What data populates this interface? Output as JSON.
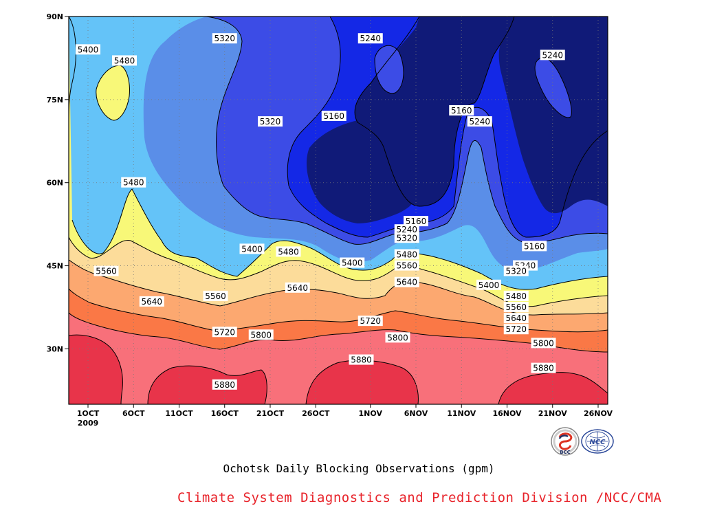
{
  "chart_data": {
    "type": "contour",
    "title": "Ochotsk Daily Blocking Observations (gpm)",
    "x_ticks": [
      "1OCT",
      "6OCT",
      "11OCT",
      "16OCT",
      "21OCT",
      "26OCT",
      "1NOV",
      "6NOV",
      "11NOV",
      "16NOV",
      "21NOV",
      "26NOV"
    ],
    "x_year_label": "2009",
    "y_ticks": [
      "90N",
      "75N",
      "60N",
      "45N",
      "30N"
    ],
    "ylim": [
      20,
      90
    ],
    "contour_levels": [
      5160,
      5240,
      5320,
      5400,
      5480,
      5560,
      5640,
      5720,
      5800,
      5880
    ],
    "fill_colors": [
      "#101a78",
      "#1428e6",
      "#3c4ce6",
      "#5a8ee8",
      "#64c3f8",
      "#f8f878",
      "#fcdc9a",
      "#fca870",
      "#fa7846",
      "#f8707a",
      "#e8344a"
    ],
    "contour_labels": [
      {
        "value": 5400,
        "date": "1OCT",
        "lat": 84
      },
      {
        "value": 5480,
        "date": "5OCT",
        "lat": 82
      },
      {
        "value": 5320,
        "date": "16OCT",
        "lat": 86
      },
      {
        "value": 5240,
        "date": "1NOV",
        "lat": 86
      },
      {
        "value": 5240,
        "date": "21NOV",
        "lat": 83
      },
      {
        "value": 5160,
        "date": "28OCT",
        "lat": 72
      },
      {
        "value": 5320,
        "date": "21OCT",
        "lat": 71
      },
      {
        "value": 5160,
        "date": "11NOV",
        "lat": 73
      },
      {
        "value": 5240,
        "date": "13NOV",
        "lat": 71
      },
      {
        "value": 5480,
        "date": "6OCT",
        "lat": 60
      },
      {
        "value": 5160,
        "date": "6NOV",
        "lat": 53
      },
      {
        "value": 5240,
        "date": "5NOV",
        "lat": 51.5
      },
      {
        "value": 5320,
        "date": "5NOV",
        "lat": 50
      },
      {
        "value": 5160,
        "date": "19NOV",
        "lat": 48.5
      },
      {
        "value": 5400,
        "date": "19OCT",
        "lat": 48
      },
      {
        "value": 5480,
        "date": "23OCT",
        "lat": 47.5
      },
      {
        "value": 5480,
        "date": "5NOV",
        "lat": 47
      },
      {
        "value": 5400,
        "date": "30OCT",
        "lat": 45.5
      },
      {
        "value": 5240,
        "date": "18NOV",
        "lat": 45
      },
      {
        "value": 5560,
        "date": "5NOV",
        "lat": 45
      },
      {
        "value": 5320,
        "date": "17NOV",
        "lat": 44
      },
      {
        "value": 5560,
        "date": "3OCT",
        "lat": 44
      },
      {
        "value": 5640,
        "date": "5NOV",
        "lat": 42
      },
      {
        "value": 5400,
        "date": "14NOV",
        "lat": 41.5
      },
      {
        "value": 5640,
        "date": "24OCT",
        "lat": 41
      },
      {
        "value": 5480,
        "date": "17NOV",
        "lat": 39.5
      },
      {
        "value": 5560,
        "date": "15OCT",
        "lat": 39.5
      },
      {
        "value": 5640,
        "date": "8OCT",
        "lat": 38.5
      },
      {
        "value": 5560,
        "date": "17NOV",
        "lat": 37.5
      },
      {
        "value": 5640,
        "date": "17NOV",
        "lat": 35.5
      },
      {
        "value": 5720,
        "date": "1NOV",
        "lat": 35
      },
      {
        "value": 5720,
        "date": "17NOV",
        "lat": 33.5
      },
      {
        "value": 5720,
        "date": "16OCT",
        "lat": 33
      },
      {
        "value": 5800,
        "date": "20OCT",
        "lat": 32.5
      },
      {
        "value": 5800,
        "date": "4NOV",
        "lat": 32
      },
      {
        "value": 5800,
        "date": "20NOV",
        "lat": 31
      },
      {
        "value": 5880,
        "date": "31OCT",
        "lat": 28
      },
      {
        "value": 5880,
        "date": "20NOV",
        "lat": 26.5
      },
      {
        "value": 5880,
        "date": "16OCT",
        "lat": 23.5
      }
    ]
  },
  "credit": "Climate System Diagnostics and Prediction Division /NCC/CMA",
  "logos": [
    {
      "name": "BCC",
      "text": "BCC"
    },
    {
      "name": "NCC",
      "text": "NCC"
    }
  ]
}
